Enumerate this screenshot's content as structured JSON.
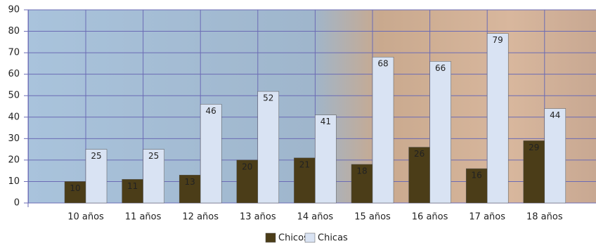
{
  "chart_data": {
    "type": "bar",
    "categories": [
      "10 años",
      "11 años",
      "12 años",
      "13 años",
      "14 años",
      "15 años",
      "16 años",
      "17 años",
      "18 años"
    ],
    "series": [
      {
        "name": "Chicos",
        "color": "#4b3d18",
        "values": [
          10,
          11,
          13,
          20,
          21,
          18,
          26,
          16,
          29
        ]
      },
      {
        "name": "Chicas",
        "color": "#d9e3f3",
        "values": [
          25,
          25,
          46,
          52,
          41,
          68,
          66,
          79,
          44
        ]
      }
    ],
    "ylim": [
      0,
      90
    ],
    "yticks": [
      0,
      10,
      20,
      30,
      40,
      50,
      60,
      70,
      80,
      90
    ],
    "grid": true
  }
}
